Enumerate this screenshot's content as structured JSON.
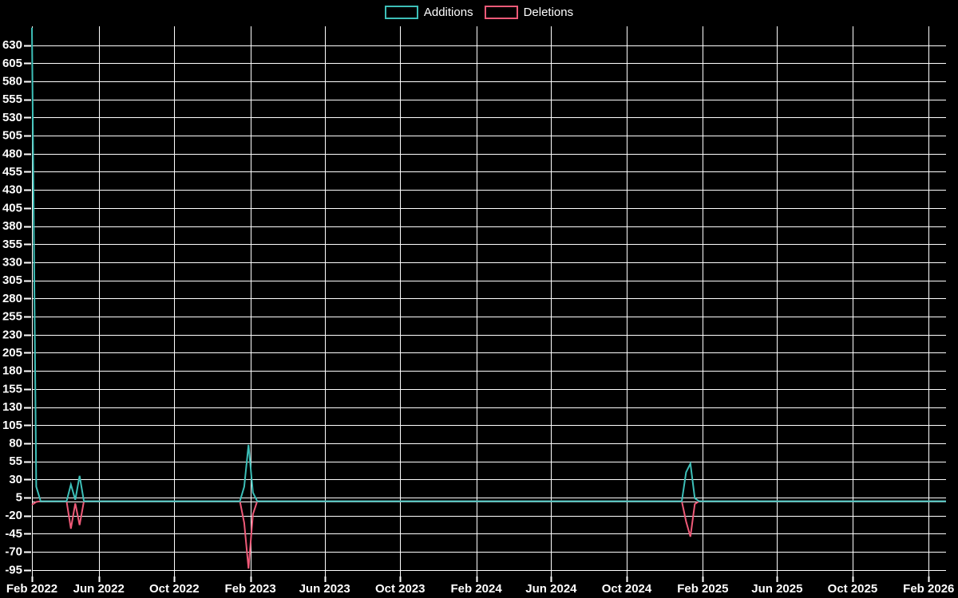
{
  "app": {
    "background_color": "#000000",
    "text_color": "#ffffff",
    "grid_color": "#ffffff"
  },
  "legend": {
    "items": [
      {
        "label": "Additions",
        "color": "#3dbfb8"
      },
      {
        "label": "Deletions",
        "color": "#ee5a78"
      }
    ]
  },
  "chart_data": {
    "type": "line",
    "title": "",
    "xlabel": "",
    "ylabel": "",
    "grid": true,
    "legend_position": "top-center",
    "x_axis": {
      "interval": "weekly",
      "start_date": "2022-02-13",
      "end_date": "2026-03-01",
      "ticks": [
        {
          "label": "Feb 2022",
          "date": "2022-02-13"
        },
        {
          "label": "Jun 2022",
          "date": "2022-06-01"
        },
        {
          "label": "Oct 2022",
          "date": "2022-10-01"
        },
        {
          "label": "Feb 2023",
          "date": "2023-02-01"
        },
        {
          "label": "Jun 2023",
          "date": "2023-06-01"
        },
        {
          "label": "Oct 2023",
          "date": "2023-10-01"
        },
        {
          "label": "Feb 2024",
          "date": "2024-02-01"
        },
        {
          "label": "Jun 2024",
          "date": "2024-06-01"
        },
        {
          "label": "Oct 2024",
          "date": "2024-10-01"
        },
        {
          "label": "Feb 2025",
          "date": "2025-02-01"
        },
        {
          "label": "Jun 2025",
          "date": "2025-06-01"
        },
        {
          "label": "Oct 2025",
          "date": "2025-10-01"
        },
        {
          "label": "Feb 2026",
          "date": "2026-02-01"
        }
      ]
    },
    "y_axis": {
      "tick_values": [
        630,
        605,
        580,
        555,
        530,
        505,
        480,
        455,
        430,
        405,
        380,
        355,
        330,
        305,
        280,
        255,
        230,
        205,
        180,
        155,
        130,
        105,
        80,
        55,
        30,
        5,
        -20,
        -45,
        -70,
        -95
      ],
      "range": [
        -104,
        656
      ],
      "zeroline": true
    },
    "series": [
      {
        "name": "Additions",
        "color": "#3dbfb8",
        "default_value": 0,
        "points": {
          "2022-02-13": 654,
          "2022-02-20": 20,
          "2022-04-17": 23,
          "2022-04-24": 2,
          "2022-05-01": 35,
          "2023-01-22": 20,
          "2023-01-29": 78,
          "2023-02-05": 12,
          "2025-01-05": 40,
          "2025-01-12": 52,
          "2025-01-19": 4
        }
      },
      {
        "name": "Deletions",
        "color": "#ee5a78",
        "default_value": 0,
        "points": {
          "2022-02-13": -5,
          "2022-02-20": -1,
          "2022-04-17": -38,
          "2022-04-24": -3,
          "2022-05-01": -33,
          "2023-01-22": -30,
          "2023-01-29": -93,
          "2023-02-05": -18,
          "2025-01-05": -28,
          "2025-01-12": -49,
          "2025-01-19": -4
        }
      }
    ]
  }
}
